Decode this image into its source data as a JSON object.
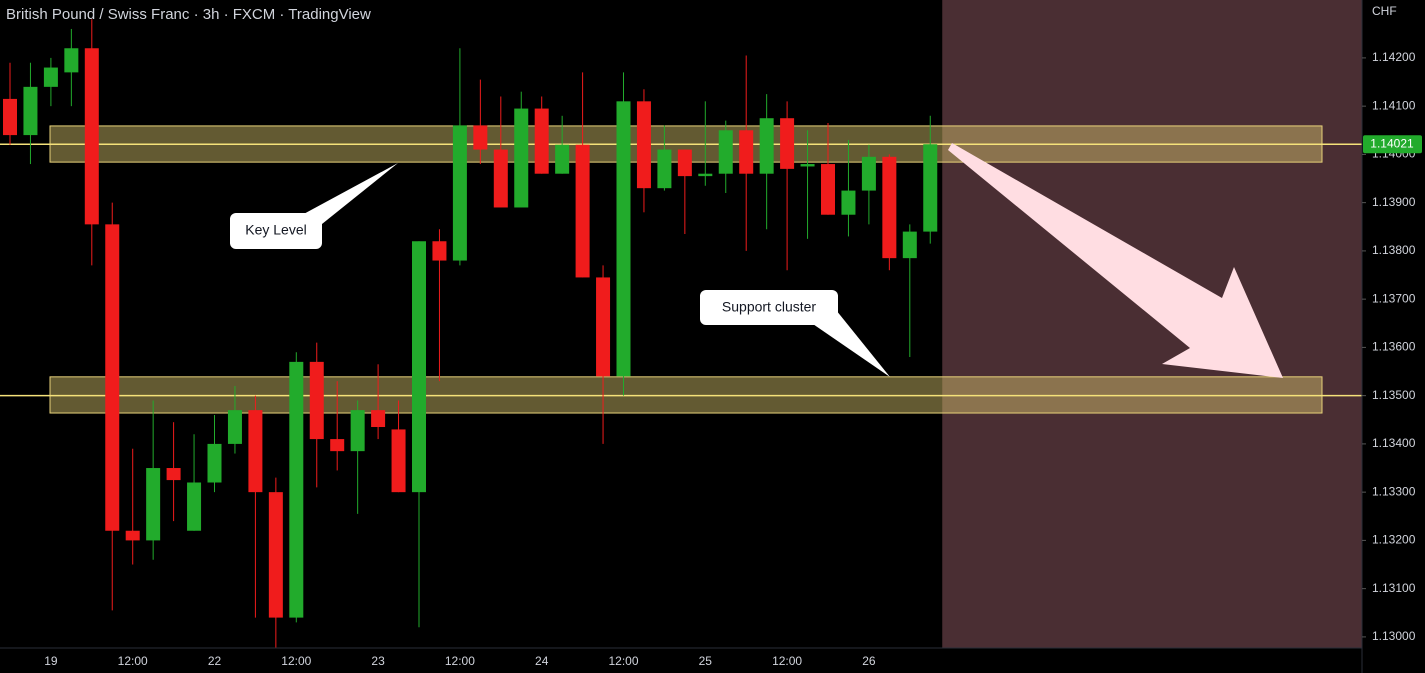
{
  "chart_data": {
    "type": "candlestick",
    "title": "British Pound / Swiss Franc · 3h · FXCM · TradingView",
    "currency": "CHF",
    "categories": [
      null,
      null,
      "19",
      null,
      null,
      null,
      "12:00",
      null,
      null,
      null,
      "22",
      null,
      null,
      null,
      "12:00",
      null,
      null,
      null,
      "23",
      null,
      null,
      null,
      "12:00",
      null,
      null,
      null,
      "24",
      null,
      null,
      null,
      "12:00",
      null,
      null,
      null,
      "25",
      null,
      null,
      null,
      "12:00",
      null,
      null,
      null,
      "26",
      null,
      null,
      null
    ],
    "open": [
      1.14115,
      1.1404,
      1.1414,
      1.1417,
      1.1422,
      1.13855,
      1.1322,
      1.132,
      1.1335,
      1.1322,
      1.1332,
      1.134,
      1.1347,
      1.133,
      1.1304,
      1.1357,
      1.1341,
      1.13385,
      1.1347,
      1.1343,
      1.133,
      1.1382,
      1.1378,
      1.1406,
      1.1401,
      1.1389,
      1.14095,
      1.1396,
      1.1402,
      1.13745,
      1.1354,
      1.1411,
      1.1393,
      1.1401,
      1.13955,
      1.1396,
      1.1405,
      1.1396,
      1.14075,
      1.13975,
      1.1398,
      1.13875,
      1.13925,
      1.13995,
      1.13785,
      1.1384
    ],
    "high": [
      1.1419,
      1.1419,
      1.142,
      1.1426,
      1.1428,
      1.139,
      1.1339,
      1.1349,
      1.13445,
      1.1342,
      1.1346,
      1.1352,
      1.135,
      1.1333,
      1.1359,
      1.1361,
      1.1353,
      1.1349,
      1.13565,
      1.1349,
      1.1382,
      1.13845,
      1.1422,
      1.14155,
      1.1412,
      1.1413,
      1.1412,
      1.1408,
      1.1417,
      1.1377,
      1.1417,
      1.14135,
      1.1406,
      1.1401,
      1.1411,
      1.1407,
      1.14205,
      1.14125,
      1.1411,
      1.1405,
      1.14065,
      1.1403,
      1.1402,
      1.14,
      1.13855,
      1.1408
    ],
    "low": [
      1.1402,
      1.1398,
      1.141,
      1.141,
      1.1377,
      1.13055,
      1.1315,
      1.1316,
      1.1324,
      1.1322,
      1.133,
      1.1338,
      1.1304,
      1.12978,
      1.1303,
      1.1331,
      1.13345,
      1.13255,
      1.1341,
      1.133,
      1.1302,
      1.1353,
      1.1377,
      1.1398,
      1.1389,
      1.1389,
      1.1396,
      1.1396,
      1.13745,
      1.134,
      1.135,
      1.1388,
      1.13925,
      1.13835,
      1.13935,
      1.1392,
      1.138,
      1.13845,
      1.1376,
      1.13825,
      1.13875,
      1.1383,
      1.13855,
      1.1376,
      1.1358,
      1.13815
    ],
    "close": [
      1.1404,
      1.1414,
      1.1418,
      1.1422,
      1.13855,
      1.1322,
      1.132,
      1.1335,
      1.13325,
      1.1332,
      1.134,
      1.1347,
      1.133,
      1.1304,
      1.1357,
      1.1341,
      1.13385,
      1.1347,
      1.13435,
      1.133,
      1.1382,
      1.1378,
      1.1406,
      1.1401,
      1.1389,
      1.14095,
      1.1396,
      1.1402,
      1.13745,
      1.1354,
      1.1411,
      1.1393,
      1.1401,
      1.13955,
      1.1396,
      1.1405,
      1.1396,
      1.14075,
      1.1397,
      1.1398,
      1.13875,
      1.13925,
      1.13995,
      1.13785,
      1.1384,
      1.14021
    ],
    "up_color": "#22ab2c",
    "down_color": "#f01c1c",
    "last_price": 1.14021,
    "ylim": [
      1.12977,
      1.1432
    ],
    "yticks": [
      {
        "value": 1.13,
        "label": "1.13000"
      },
      {
        "value": 1.131,
        "label": "1.13100"
      },
      {
        "value": 1.132,
        "label": "1.13200"
      },
      {
        "value": 1.133,
        "label": "1.13300"
      },
      {
        "value": 1.134,
        "label": "1.13400"
      },
      {
        "value": 1.135,
        "label": "1.13500"
      },
      {
        "value": 1.136,
        "label": "1.13600"
      },
      {
        "value": 1.137,
        "label": "1.13700"
      },
      {
        "value": 1.138,
        "label": "1.13800"
      },
      {
        "value": 1.139,
        "label": "1.13900"
      },
      {
        "value": 1.14,
        "label": "1.14000"
      },
      {
        "value": 1.141,
        "label": "1.14100"
      },
      {
        "value": 1.142,
        "label": "1.14200"
      }
    ],
    "grid": false,
    "zones": [
      {
        "label": "Key Level",
        "low": 1.13984,
        "high": 1.14059,
        "level": 1.14021
      },
      {
        "label": "Support cluster",
        "low": 1.13464,
        "high": 1.13539,
        "level": 1.135
      }
    ]
  }
}
